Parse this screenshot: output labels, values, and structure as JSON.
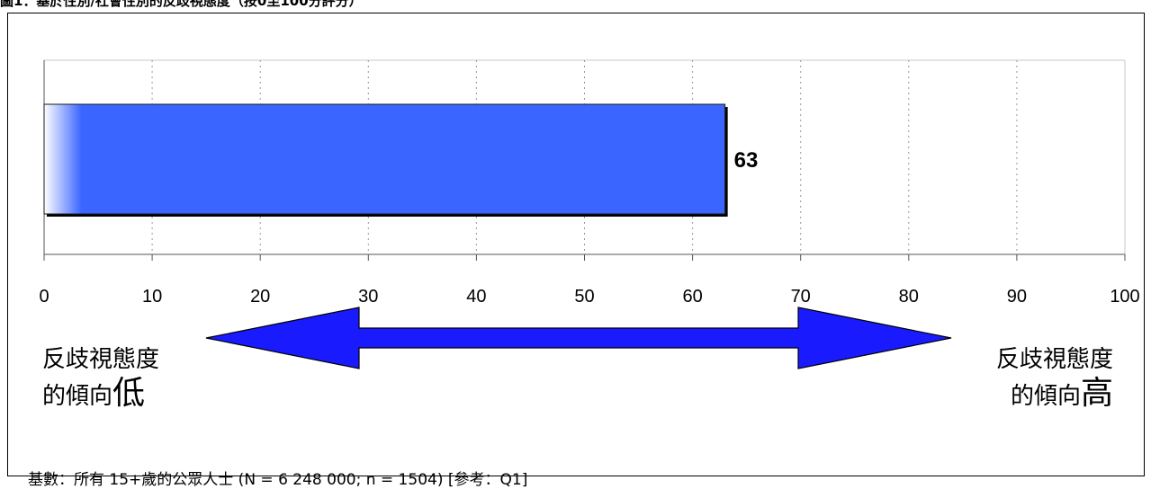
{
  "title": "圖1：基於性別/社會性別的反歧視態度（按0至100分評分）",
  "chart_data": {
    "type": "bar",
    "orientation": "horizontal",
    "categories": [
      ""
    ],
    "values": [
      63
    ],
    "data_labels": [
      "63"
    ],
    "xlim": [
      0,
      100
    ],
    "x_ticks": [
      "0",
      "10",
      "20",
      "30",
      "40",
      "50",
      "60",
      "70",
      "80",
      "90",
      "100"
    ],
    "grid": true,
    "bar_color": "#3a66ff",
    "arrow_color": "#1a1aff"
  },
  "scale_labels": {
    "low_line1": "反歧視態度",
    "low_line2": "的傾向",
    "low_emph": "低",
    "high_line1": "反歧視態度",
    "high_line2": "的傾向",
    "high_emph": "高"
  },
  "footnote": "基數：所有 15+歲的公眾人士  (N = 6 248 000; n = 1504) [參考：Q1]"
}
